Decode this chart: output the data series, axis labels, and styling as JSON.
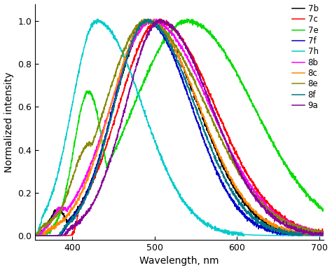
{
  "xlabel": "Wavelength, nm",
  "ylabel": "Normalized intensity",
  "xlim": [
    355,
    705
  ],
  "ylim": [
    -0.02,
    1.08
  ],
  "xticks": [
    400,
    500,
    600,
    700
  ],
  "yticks": [
    0.0,
    0.2,
    0.4,
    0.6,
    0.8,
    1.0
  ],
  "series": [
    {
      "label": "7b",
      "color": "#000000",
      "peak": 493,
      "sigma_l": 42,
      "sigma_r": 60,
      "onset": 395,
      "pre_peak": 0.12,
      "pre_wl": 383,
      "pre_sig": 10
    },
    {
      "label": "7c",
      "color": "#ff0000",
      "peak": 505,
      "sigma_l": 48,
      "sigma_r": 68,
      "onset": 410,
      "pre_peak": 0.0,
      "pre_wl": 0,
      "pre_sig": 0
    },
    {
      "label": "7e",
      "color": "#00dd00",
      "peak": 540,
      "sigma_l": 65,
      "sigma_r": 80,
      "onset": 378,
      "pre_peak": 0.67,
      "pre_wl": 420,
      "pre_sig": 18
    },
    {
      "label": "7f",
      "color": "#0000cc",
      "peak": 490,
      "sigma_l": 40,
      "sigma_r": 55,
      "onset": 395,
      "pre_peak": 0.0,
      "pre_wl": 0,
      "pre_sig": 0
    },
    {
      "label": "7h",
      "color": "#00cccc",
      "peak": 430,
      "sigma_l": 30,
      "sigma_r": 55,
      "onset": 365,
      "pre_peak": 0.0,
      "pre_wl": 0,
      "pre_sig": 0
    },
    {
      "label": "8b",
      "color": "#ff00ff",
      "peak": 497,
      "sigma_l": 50,
      "sigma_r": 70,
      "onset": 368,
      "pre_peak": 0.13,
      "pre_wl": 388,
      "pre_sig": 12
    },
    {
      "label": "8c",
      "color": "#ff8800",
      "peak": 492,
      "sigma_l": 45,
      "sigma_r": 62,
      "onset": 372,
      "pre_peak": 0.0,
      "pre_wl": 0,
      "pre_sig": 0
    },
    {
      "label": "8e",
      "color": "#888800",
      "peak": 490,
      "sigma_l": 50,
      "sigma_r": 72,
      "onset": 365,
      "pre_peak": 0.43,
      "pre_wl": 422,
      "pre_sig": 22
    },
    {
      "label": "8f",
      "color": "#007788",
      "peak": 491,
      "sigma_l": 40,
      "sigma_r": 58,
      "onset": 393,
      "pre_peak": 0.0,
      "pre_wl": 0,
      "pre_sig": 0
    },
    {
      "label": "9a",
      "color": "#880099",
      "peak": 507,
      "sigma_l": 42,
      "sigma_r": 62,
      "onset": 398,
      "pre_peak": 0.0,
      "pre_wl": 0,
      "pre_sig": 0
    }
  ],
  "background_color": "#ffffff",
  "legend_fontsize": 8.5,
  "axis_fontsize": 10,
  "tick_fontsize": 9,
  "linewidth": 1.1
}
